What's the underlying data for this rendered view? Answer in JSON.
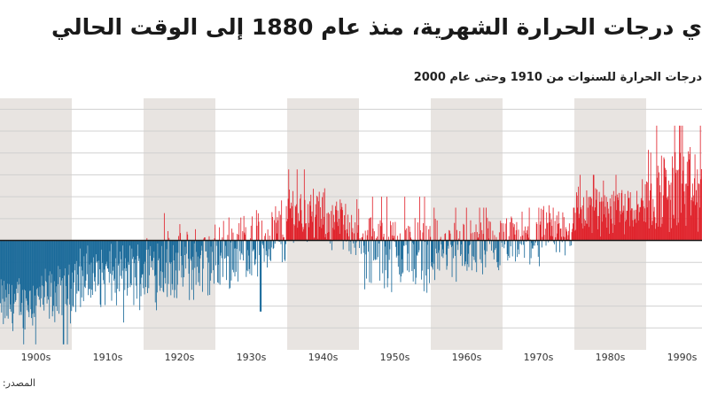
{
  "header": {
    "title": "ي درجات الحرارة الشهرية، منذ عام 1880 إلى الوقت الحالي",
    "subtitle": "درجات الحرارة للسنوات من 1910 وحتى عام 2000",
    "source_label": "المصدر:"
  },
  "colors": {
    "positive": "#e0222b",
    "negative": "#1a6a9a",
    "band": "#e8e4e1",
    "grid": "#d0d0d0",
    "zero_line": "#1a1a1a"
  },
  "chart_data": {
    "type": "bar",
    "title": "",
    "xlabel": "",
    "ylabel": "",
    "grid": true,
    "ylim": [
      -1.0,
      1.3
    ],
    "x_tick_labels": [
      "1900s",
      "1910s",
      "1920s",
      "1930s",
      "1940s",
      "1950s",
      "1960s",
      "1970s",
      "1980s",
      "1990s"
    ],
    "series": [
      {
        "name": "",
        "sampling": "approximate decade-average monthly anomaly envelope (visually estimated)",
        "decades": [
          "1900s",
          "1910s",
          "1920s",
          "1930s",
          "1940s",
          "1950s",
          "1960s",
          "1970s",
          "1980s",
          "1990s"
        ],
        "typical_values": [
          -0.6,
          -0.35,
          -0.25,
          -0.15,
          0.3,
          -0.1,
          -0.1,
          -0.05,
          0.25,
          0.45
        ],
        "peak_values": [
          -0.95,
          -0.75,
          0.25,
          -0.65,
          0.65,
          0.4,
          0.3,
          0.3,
          0.6,
          1.05
        ]
      }
    ]
  }
}
